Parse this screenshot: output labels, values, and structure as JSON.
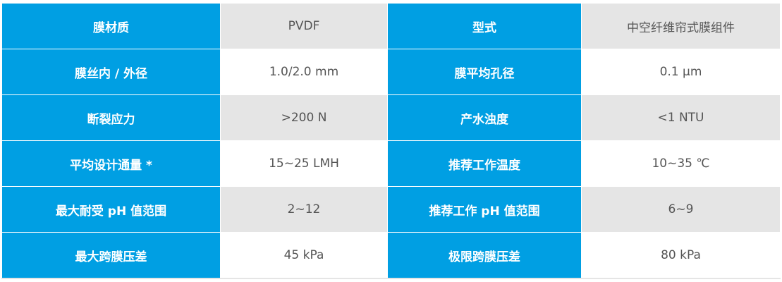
{
  "colors": {
    "label_bg": "#009fe3",
    "value_bg_alt": "#e5e5e5",
    "value_text": "#555555"
  },
  "rows": [
    {
      "label1": "膜材质",
      "value1": "PVDF",
      "label2": "型式",
      "value2": "中空纤维帘式膜组件"
    },
    {
      "label1": "膜丝内 / 外径",
      "value1": "1.0/2.0 mm",
      "label2": "膜平均孔径",
      "value2": "0.1 μm"
    },
    {
      "label1": "断裂应力",
      "value1": ">200 N",
      "label2": "产水浊度",
      "value2": "<1 NTU"
    },
    {
      "label1": "平均设计通量 *",
      "value1": "15~25 LMH",
      "label2": "推荐工作温度",
      "value2": "10~35 ℃"
    },
    {
      "label1": "最大耐受 pH 值范围",
      "value1": "2~12",
      "label2": "推荐工作 pH 值范围",
      "value2": "6~9"
    },
    {
      "label1": "最大跨膜压差",
      "value1": "45 kPa",
      "label2": "极限跨膜压差",
      "value2": "80 kPa"
    }
  ]
}
